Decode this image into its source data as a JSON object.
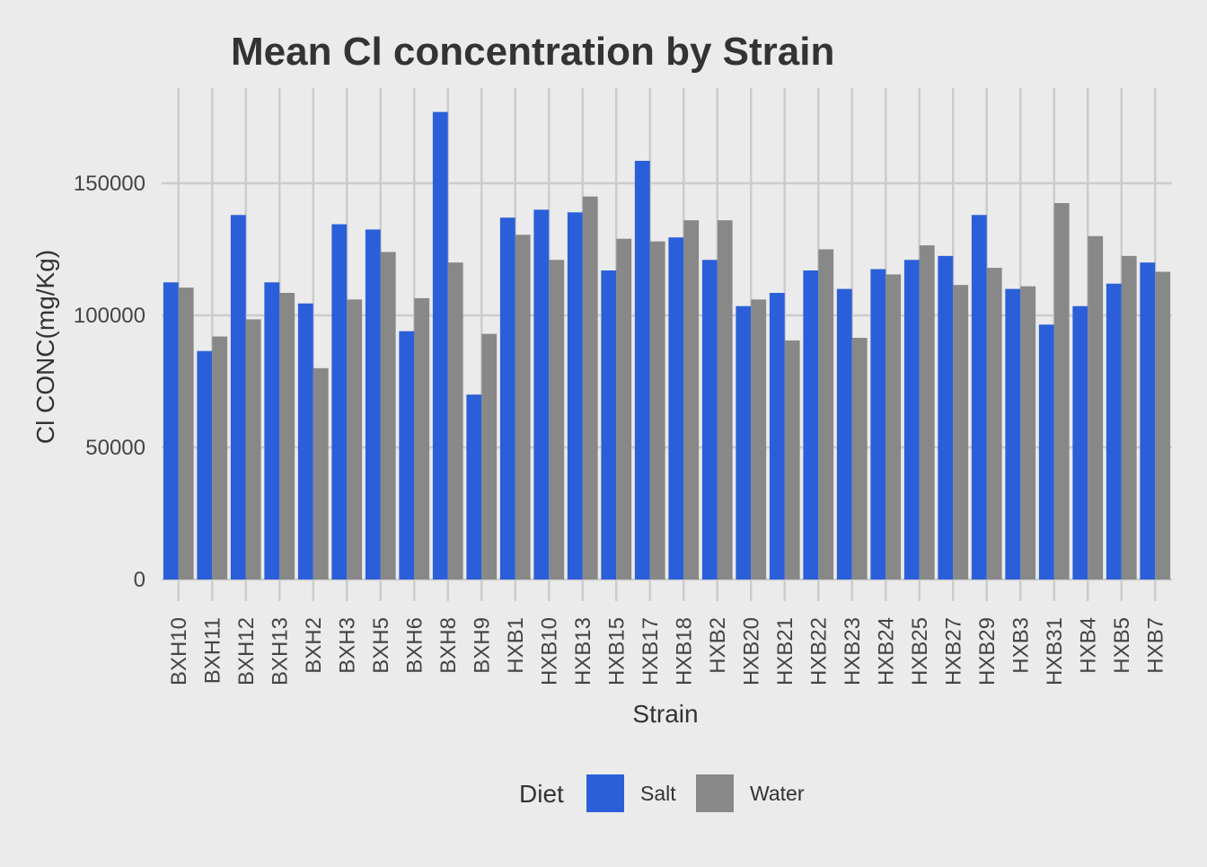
{
  "chart_data": {
    "type": "bar",
    "title": "Mean Cl concentration by Strain",
    "xlabel": "Strain",
    "ylabel": "Cl CONC(mg/Kg)",
    "ylim": [
      0,
      180000
    ],
    "yticks": [
      0,
      50000,
      100000,
      150000
    ],
    "ytick_labels": [
      "0",
      "50000",
      "100000",
      "150000"
    ],
    "grid": true,
    "legend_position": "bottom",
    "categories": [
      "BXH10",
      "BXH11",
      "BXH12",
      "BXH13",
      "BXH2",
      "BXH3",
      "BXH5",
      "BXH6",
      "BXH8",
      "BXH9",
      "HXB1",
      "HXB10",
      "HXB13",
      "HXB15",
      "HXB17",
      "HXB18",
      "HXB2",
      "HXB20",
      "HXB21",
      "HXB22",
      "HXB23",
      "HXB24",
      "HXB25",
      "HXB27",
      "HXB29",
      "HXB3",
      "HXB31",
      "HXB4",
      "HXB5",
      "HXB7"
    ],
    "legend": {
      "title": "Diet"
    },
    "series": [
      {
        "name": "Salt",
        "color": "#2b5fd9",
        "values": [
          112500,
          86500,
          138000,
          112500,
          104500,
          134500,
          132500,
          94000,
          177000,
          70000,
          137000,
          140000,
          139000,
          117000,
          158500,
          129500,
          121000,
          103500,
          108500,
          117000,
          110000,
          117500,
          121000,
          122500,
          138000,
          110000,
          96500,
          103500,
          112000,
          120000
        ]
      },
      {
        "name": "Water",
        "color": "#888888",
        "values": [
          110500,
          92000,
          98500,
          108500,
          80000,
          106000,
          124000,
          106500,
          120000,
          93000,
          130500,
          121000,
          145000,
          129000,
          128000,
          136000,
          136000,
          106000,
          90500,
          125000,
          91500,
          115500,
          126500,
          111500,
          118000,
          111000,
          142500,
          130000,
          122500,
          116500
        ]
      }
    ]
  }
}
